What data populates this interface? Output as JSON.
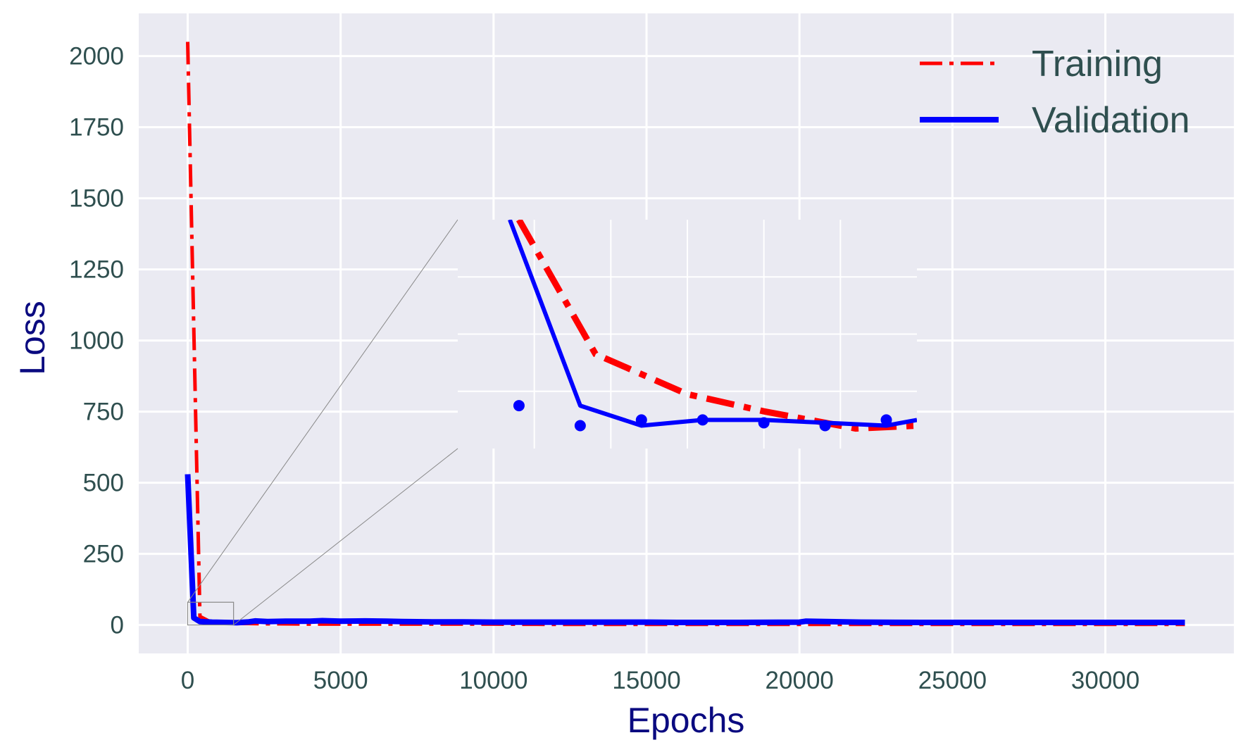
{
  "chart_data": {
    "type": "line",
    "title": "",
    "xlabel": "Epochs",
    "ylabel": "Loss",
    "xlim": [
      -1600,
      34200
    ],
    "ylim": [
      -100,
      2150
    ],
    "xticks": [
      0,
      5000,
      10000,
      15000,
      20000,
      25000,
      30000
    ],
    "yticks": [
      0,
      250,
      500,
      750,
      1000,
      1250,
      1500,
      1750,
      2000
    ],
    "grid": true,
    "legend": "top-right",
    "series": [
      {
        "name": "Training",
        "color": "#ff0000",
        "style": "dashdot",
        "x": [
          0,
          400,
          800,
          1200,
          1600,
          2000,
          2400,
          3000,
          4000,
          5000,
          6000,
          8000,
          10000,
          12000,
          15000,
          18000,
          20000,
          22000,
          25000,
          28000,
          30000,
          32600
        ],
        "y": [
          2050,
          30,
          8,
          6,
          5,
          5,
          4,
          4,
          3,
          3,
          3,
          3,
          3,
          2,
          2,
          2,
          2,
          2,
          2,
          2,
          2,
          2
        ]
      },
      {
        "name": "Validation",
        "color": "#0000ff",
        "style": "solid",
        "x": [
          0,
          200,
          400,
          800,
          1200,
          1600,
          2000,
          2200,
          2600,
          3200,
          4000,
          4400,
          5000,
          5800,
          6500,
          7000,
          8000,
          9000,
          10000,
          12000,
          14000,
          15000,
          16000,
          18000,
          20000,
          20200,
          22000,
          24000,
          25000,
          26500,
          28000,
          30000,
          32600
        ],
        "y": [
          530,
          25,
          12,
          10,
          9,
          8,
          11,
          14,
          12,
          13,
          13,
          15,
          13,
          14,
          13,
          12,
          11,
          11,
          10,
          10,
          10,
          10,
          9,
          9,
          10,
          13,
          10,
          9,
          9,
          9,
          9,
          9,
          9
        ]
      }
    ],
    "inset": {
      "xlim": [
        0,
        1500
      ],
      "ylim": [
        0,
        80
      ],
      "training": {
        "x": [
          200,
          450,
          750,
          1000,
          1300,
          1500
        ],
        "y": [
          80,
          33,
          19,
          13,
          7,
          8
        ]
      },
      "validation": {
        "x": [
          170,
          400,
          600,
          800,
          1000,
          1200,
          1400,
          1500
        ],
        "y": [
          80,
          15,
          8,
          10,
          10,
          9,
          8,
          10
        ]
      },
      "validation_markers": {
        "x": [
          200,
          400,
          600,
          800,
          1000,
          1200,
          1400
        ],
        "y": [
          15,
          8,
          10,
          10,
          9,
          8,
          10
        ]
      }
    }
  }
}
